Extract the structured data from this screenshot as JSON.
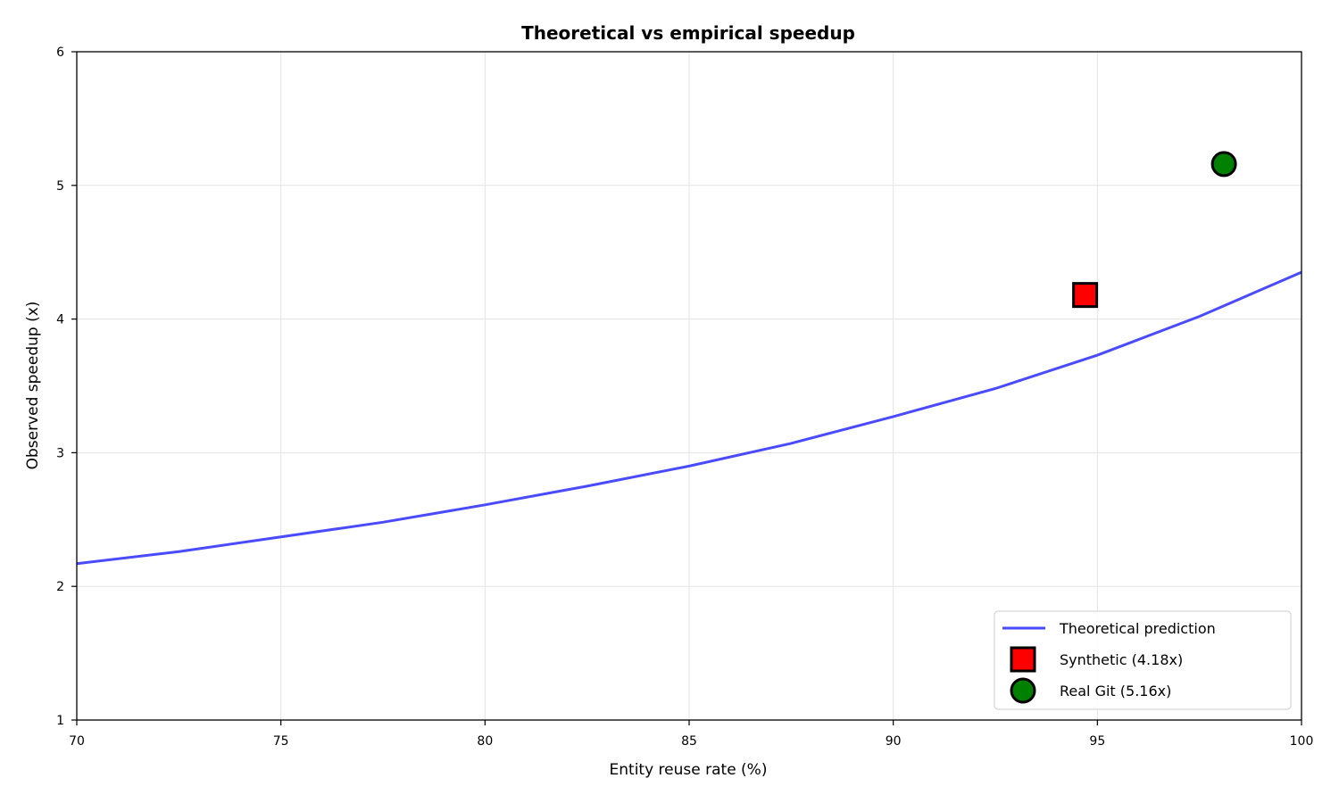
{
  "chart_data": {
    "type": "line",
    "title": "Theoretical vs empirical speedup",
    "xlabel": "Entity reuse rate (%)",
    "ylabel": "Observed speedup (x)",
    "xlim": [
      70,
      100
    ],
    "ylim": [
      1,
      6
    ],
    "xticks": [
      70,
      75,
      80,
      85,
      90,
      95,
      100
    ],
    "yticks": [
      1,
      2,
      3,
      4,
      5,
      6
    ],
    "grid": true,
    "legend_position": "lower-right",
    "series": [
      {
        "name": "Theoretical prediction",
        "kind": "line",
        "color": "#4a4aff",
        "x": [
          70,
          72.5,
          75,
          77.5,
          80,
          82.5,
          85,
          87.5,
          90,
          92.5,
          95,
          97.5,
          100
        ],
        "y": [
          2.17,
          2.26,
          2.37,
          2.48,
          2.61,
          2.75,
          2.9,
          3.07,
          3.27,
          3.48,
          3.73,
          4.02,
          4.35
        ]
      },
      {
        "name": "Synthetic (4.18x)",
        "kind": "scatter",
        "marker": "square",
        "color": "#ff0000",
        "x": [
          94.7
        ],
        "y": [
          4.18
        ]
      },
      {
        "name": "Real Git (5.16x)",
        "kind": "scatter",
        "marker": "circle",
        "color": "#008000",
        "x": [
          98.1
        ],
        "y": [
          5.16
        ]
      }
    ]
  }
}
